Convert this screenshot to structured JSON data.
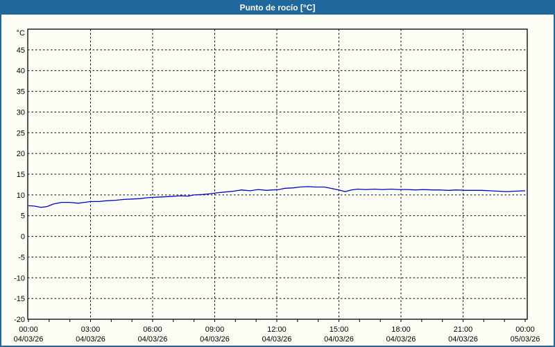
{
  "window": {
    "title": "Punto de rocío [°C]"
  },
  "colors": {
    "titlebar_bg": "#20689b",
    "titlebar_text": "#ffffff",
    "frame_border": "#20689b",
    "background": "#fcfef5",
    "plot_border": "#000000",
    "grid": "#000000",
    "label": "#000000",
    "series_line": "#0000cc"
  },
  "chart_data": {
    "type": "line",
    "title": "Punto de rocío [°C]",
    "ylabel": "°C",
    "xlabel": "",
    "ylim": [
      -20,
      50
    ],
    "ytick_step": 5,
    "yticks": [
      45,
      40,
      35,
      30,
      25,
      20,
      15,
      10,
      5,
      0,
      -5,
      -10,
      -15,
      -20
    ],
    "x_hours_range": [
      0,
      24
    ],
    "minor_tick_every_hours": 1,
    "grid": "dashed",
    "legend": "none",
    "xticks": [
      {
        "hour": 0,
        "time": "00:00",
        "date": "04/03/26"
      },
      {
        "hour": 3,
        "time": "03:00",
        "date": "04/03/26"
      },
      {
        "hour": 6,
        "time": "06:00",
        "date": "04/03/26"
      },
      {
        "hour": 9,
        "time": "09:00",
        "date": "04/03/26"
      },
      {
        "hour": 12,
        "time": "12:00",
        "date": "04/03/26"
      },
      {
        "hour": 15,
        "time": "15:00",
        "date": "04/03/26"
      },
      {
        "hour": 18,
        "time": "18:00",
        "date": "04/03/26"
      },
      {
        "hour": 21,
        "time": "21:00",
        "date": "04/03/26"
      },
      {
        "hour": 24,
        "time": "00:00",
        "date": "05/03/26"
      }
    ],
    "series": [
      {
        "name": "Punto de rocío",
        "color": "#0000cc",
        "points": [
          [
            0.0,
            7.4
          ],
          [
            0.3,
            7.3
          ],
          [
            0.6,
            7.0
          ],
          [
            0.9,
            7.2
          ],
          [
            1.2,
            7.8
          ],
          [
            1.6,
            8.2
          ],
          [
            2.0,
            8.2
          ],
          [
            2.4,
            8.0
          ],
          [
            2.7,
            8.2
          ],
          [
            3.0,
            8.4
          ],
          [
            3.4,
            8.4
          ],
          [
            3.8,
            8.6
          ],
          [
            4.2,
            8.7
          ],
          [
            4.6,
            8.9
          ],
          [
            5.0,
            9.0
          ],
          [
            5.4,
            9.1
          ],
          [
            5.7,
            9.3
          ],
          [
            6.0,
            9.4
          ],
          [
            6.4,
            9.5
          ],
          [
            6.8,
            9.6
          ],
          [
            7.1,
            9.7
          ],
          [
            7.4,
            9.8
          ],
          [
            7.7,
            9.7
          ],
          [
            8.0,
            10.0
          ],
          [
            8.4,
            10.1
          ],
          [
            8.8,
            10.3
          ],
          [
            9.1,
            10.5
          ],
          [
            9.5,
            10.7
          ],
          [
            9.9,
            10.9
          ],
          [
            10.3,
            11.2
          ],
          [
            10.7,
            11.0
          ],
          [
            11.1,
            11.3
          ],
          [
            11.5,
            11.1
          ],
          [
            11.8,
            11.2
          ],
          [
            12.1,
            11.3
          ],
          [
            12.4,
            11.6
          ],
          [
            12.8,
            11.7
          ],
          [
            13.1,
            11.9
          ],
          [
            13.5,
            12.0
          ],
          [
            13.9,
            11.9
          ],
          [
            14.3,
            11.9
          ],
          [
            14.7,
            11.5
          ],
          [
            15.0,
            11.2
          ],
          [
            15.3,
            10.8
          ],
          [
            15.6,
            11.2
          ],
          [
            15.9,
            11.4
          ],
          [
            16.3,
            11.3
          ],
          [
            16.7,
            11.4
          ],
          [
            17.1,
            11.3
          ],
          [
            17.5,
            11.4
          ],
          [
            17.9,
            11.3
          ],
          [
            18.3,
            11.3
          ],
          [
            18.7,
            11.2
          ],
          [
            19.1,
            11.3
          ],
          [
            19.5,
            11.2
          ],
          [
            19.9,
            11.2
          ],
          [
            20.3,
            11.1
          ],
          [
            20.7,
            11.2
          ],
          [
            21.1,
            11.1
          ],
          [
            21.5,
            11.1
          ],
          [
            21.9,
            11.1
          ],
          [
            22.3,
            11.0
          ],
          [
            22.7,
            10.9
          ],
          [
            23.1,
            10.8
          ],
          [
            23.5,
            10.9
          ],
          [
            24.0,
            11.0
          ]
        ]
      }
    ]
  }
}
